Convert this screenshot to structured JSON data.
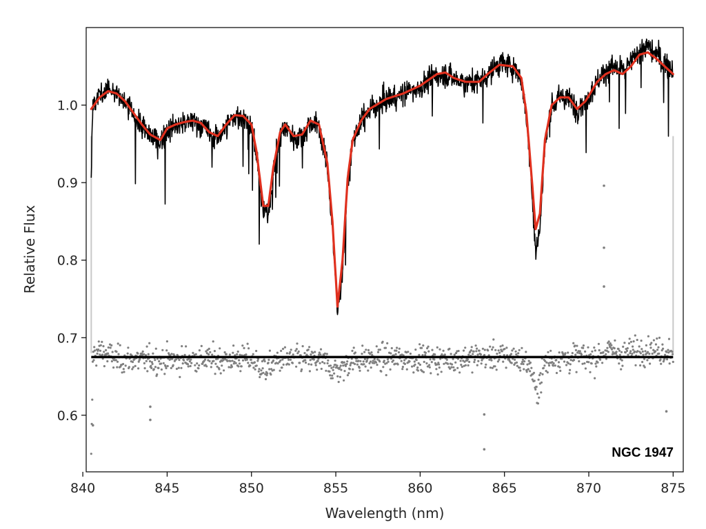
{
  "chart_data": {
    "type": "line",
    "title": "",
    "xlabel": "Wavelength (nm)",
    "ylabel": "Relative Flux",
    "xlim": [
      840.2,
      875.6
    ],
    "ylim": [
      0.527,
      1.1
    ],
    "x_ticks": [
      840,
      845,
      850,
      855,
      860,
      865,
      870,
      875
    ],
    "y_ticks": [
      0.6,
      0.7,
      0.8,
      0.9,
      1.0
    ],
    "y_tick_labels": [
      "0.6",
      "0.7",
      "0.8",
      "0.9",
      "1.0"
    ],
    "grid": false,
    "legend": "none",
    "annotation": "NGC 1947",
    "colors": {
      "observed": "#000000",
      "model": "#e0301e",
      "residuals": "#808080",
      "residual_zero": "#000000",
      "edge_mask": "#c8c8c8"
    },
    "series": [
      {
        "role": "model fit",
        "x": [
          840.5,
          841.0,
          841.5,
          842.0,
          842.5,
          843.0,
          843.5,
          844.0,
          844.6,
          845.0,
          845.5,
          846.0,
          846.5,
          847.0,
          847.5,
          848.0,
          848.5,
          849.0,
          849.5,
          850.0,
          850.3,
          850.7,
          851.0,
          851.3,
          851.7,
          852.0,
          852.5,
          853.0,
          853.5,
          854.0,
          854.5,
          854.8,
          855.1,
          855.4,
          855.7,
          856.0,
          856.5,
          857.0,
          858.0,
          859.0,
          860.0,
          861.0,
          861.5,
          862.0,
          862.7,
          863.5,
          864.0,
          864.7,
          865.5,
          866.0,
          866.3,
          866.6,
          866.85,
          867.1,
          867.4,
          867.8,
          868.3,
          868.8,
          869.3,
          869.8,
          870.5,
          871.0,
          871.5,
          872.0,
          872.5,
          873.0,
          873.5,
          874.0,
          874.5,
          875.0
        ],
        "y": [
          0.995,
          1.01,
          1.018,
          1.015,
          1.005,
          0.99,
          0.975,
          0.962,
          0.955,
          0.97,
          0.975,
          0.978,
          0.98,
          0.977,
          0.965,
          0.96,
          0.975,
          0.987,
          0.986,
          0.975,
          0.94,
          0.87,
          0.87,
          0.92,
          0.965,
          0.975,
          0.96,
          0.962,
          0.98,
          0.975,
          0.925,
          0.85,
          0.74,
          0.8,
          0.905,
          0.955,
          0.98,
          0.995,
          1.008,
          1.015,
          1.025,
          1.04,
          1.042,
          1.035,
          1.03,
          1.03,
          1.04,
          1.052,
          1.05,
          1.035,
          0.99,
          0.91,
          0.84,
          0.86,
          0.955,
          1.0,
          1.01,
          1.01,
          0.995,
          1.005,
          1.03,
          1.04,
          1.045,
          1.04,
          1.05,
          1.065,
          1.068,
          1.06,
          1.05,
          1.04
        ]
      },
      {
        "role": "observed spectrum",
        "x": [
          840.5,
          840.6,
          841.0,
          841.5,
          842.0,
          842.5,
          843.0,
          843.5,
          844.0,
          844.6,
          845.0,
          845.5,
          846.0,
          846.5,
          847.0,
          847.5,
          848.0,
          848.5,
          849.0,
          849.5,
          850.0,
          850.3,
          850.7,
          851.0,
          851.3,
          851.7,
          852.0,
          852.5,
          853.0,
          853.5,
          854.0,
          854.5,
          854.8,
          855.1,
          855.4,
          855.7,
          856.0,
          856.5,
          857.0,
          858.0,
          859.0,
          860.0,
          861.0,
          861.5,
          862.0,
          862.7,
          863.5,
          864.0,
          864.7,
          865.5,
          866.0,
          866.3,
          866.6,
          866.85,
          867.1,
          867.4,
          867.8,
          868.3,
          868.8,
          869.3,
          869.8,
          870.5,
          871.0,
          871.5,
          872.0,
          872.5,
          873.0,
          873.5,
          874.0,
          874.5,
          875.0
        ],
        "y": [
          0.91,
          1.0,
          1.015,
          1.02,
          1.013,
          1.003,
          0.988,
          0.972,
          0.96,
          0.952,
          0.968,
          0.972,
          0.976,
          0.979,
          0.975,
          0.963,
          0.958,
          0.973,
          0.985,
          0.985,
          0.973,
          0.935,
          0.86,
          0.86,
          0.915,
          0.963,
          0.973,
          0.958,
          0.96,
          0.978,
          0.972,
          0.92,
          0.84,
          0.73,
          0.79,
          0.9,
          0.953,
          0.978,
          0.993,
          1.007,
          1.014,
          1.024,
          1.038,
          1.04,
          1.034,
          1.029,
          1.031,
          1.04,
          1.053,
          1.05,
          1.033,
          0.985,
          0.9,
          0.81,
          0.84,
          0.95,
          0.998,
          1.01,
          1.008,
          0.996,
          1.004,
          1.03,
          1.045,
          1.05,
          1.042,
          1.055,
          1.07,
          1.075,
          1.065,
          1.055,
          1.045
        ]
      }
    ],
    "residuals": {
      "x_range": [
        840.5,
        875.0
      ],
      "offset": 0.675,
      "scatter": 0.012,
      "outliers": [
        {
          "x": 840.6,
          "y": 0.587
        },
        {
          "x": 844.0,
          "y": 0.611
        },
        {
          "x": 844.0,
          "y": 0.594
        },
        {
          "x": 863.8,
          "y": 0.601
        },
        {
          "x": 863.8,
          "y": 0.556
        },
        {
          "x": 870.9,
          "y": 0.896
        },
        {
          "x": 870.9,
          "y": 0.816
        },
        {
          "x": 870.9,
          "y": 0.766
        },
        {
          "x": 874.6,
          "y": 0.605
        }
      ]
    }
  }
}
